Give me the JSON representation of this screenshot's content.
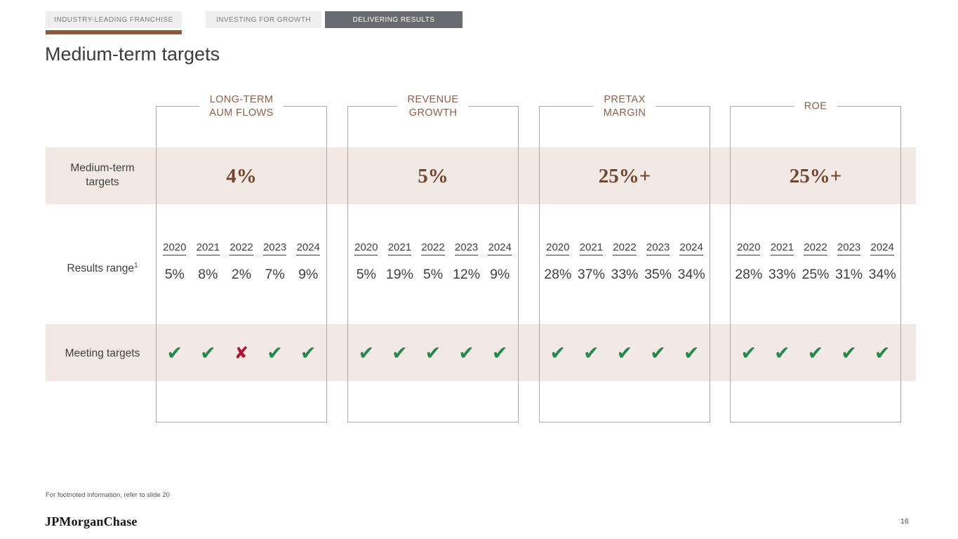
{
  "tabs": [
    {
      "label": "INDUSTRY-LEADING FRANCHISE"
    },
    {
      "label": "INVESTING FOR GROWTH"
    },
    {
      "label": "DELIVERING RESULTS"
    }
  ],
  "title": "Medium-term targets",
  "row_labels": {
    "targets": "Medium-term targets",
    "results": "Results range",
    "results_sup": "1",
    "meeting": "Meeting targets"
  },
  "years": [
    "2020",
    "2021",
    "2022",
    "2023",
    "2024"
  ],
  "columns": [
    {
      "header_lines": [
        "LONG-TERM",
        "AUM FLOWS"
      ],
      "target": "4%",
      "results": [
        "5%",
        "8%",
        "2%",
        "7%",
        "9%"
      ],
      "marks": [
        {
          "glyph": "✔",
          "type": "pass"
        },
        {
          "glyph": "✔",
          "type": "pass"
        },
        {
          "glyph": "✘",
          "type": "fail"
        },
        {
          "glyph": "✔",
          "type": "pass"
        },
        {
          "glyph": "✔",
          "type": "pass"
        }
      ]
    },
    {
      "header_lines": [
        "REVENUE",
        "GROWTH"
      ],
      "target": "5%",
      "results": [
        "5%",
        "19%",
        "5%",
        "12%",
        "9%"
      ],
      "marks": [
        {
          "glyph": "✔",
          "type": "pass"
        },
        {
          "glyph": "✔",
          "type": "pass"
        },
        {
          "glyph": "✔",
          "type": "pass"
        },
        {
          "glyph": "✔",
          "type": "pass"
        },
        {
          "glyph": "✔",
          "type": "pass"
        }
      ]
    },
    {
      "header_lines": [
        "PRETAX",
        "MARGIN"
      ],
      "target": "25%+",
      "results": [
        "28%",
        "37%",
        "33%",
        "35%",
        "34%"
      ],
      "marks": [
        {
          "glyph": "✔",
          "type": "pass"
        },
        {
          "glyph": "✔",
          "type": "pass"
        },
        {
          "glyph": "✔",
          "type": "pass"
        },
        {
          "glyph": "✔",
          "type": "pass"
        },
        {
          "glyph": "✔",
          "type": "pass"
        }
      ]
    },
    {
      "header_lines": [
        "ROE"
      ],
      "target": "25%+",
      "results": [
        "28%",
        "33%",
        "25%",
        "31%",
        "34%"
      ],
      "marks": [
        {
          "glyph": "✔",
          "type": "pass"
        },
        {
          "glyph": "✔",
          "type": "pass"
        },
        {
          "glyph": "✔",
          "type": "pass"
        },
        {
          "glyph": "✔",
          "type": "pass"
        },
        {
          "glyph": "✔",
          "type": "pass"
        }
      ]
    }
  ],
  "footnote": "For footnoted information, refer to slide 20",
  "logo": "JPMorganChase",
  "page_number": "16",
  "colors": {
    "accent_brown": "#8a5a3d",
    "header_brown": "#8c604a",
    "target_brown": "#74452f",
    "band_beige": "#f2e9e4",
    "pass_green": "#27884d",
    "fail_red": "#b01337",
    "active_tab_gray": "#6a6b6e"
  }
}
